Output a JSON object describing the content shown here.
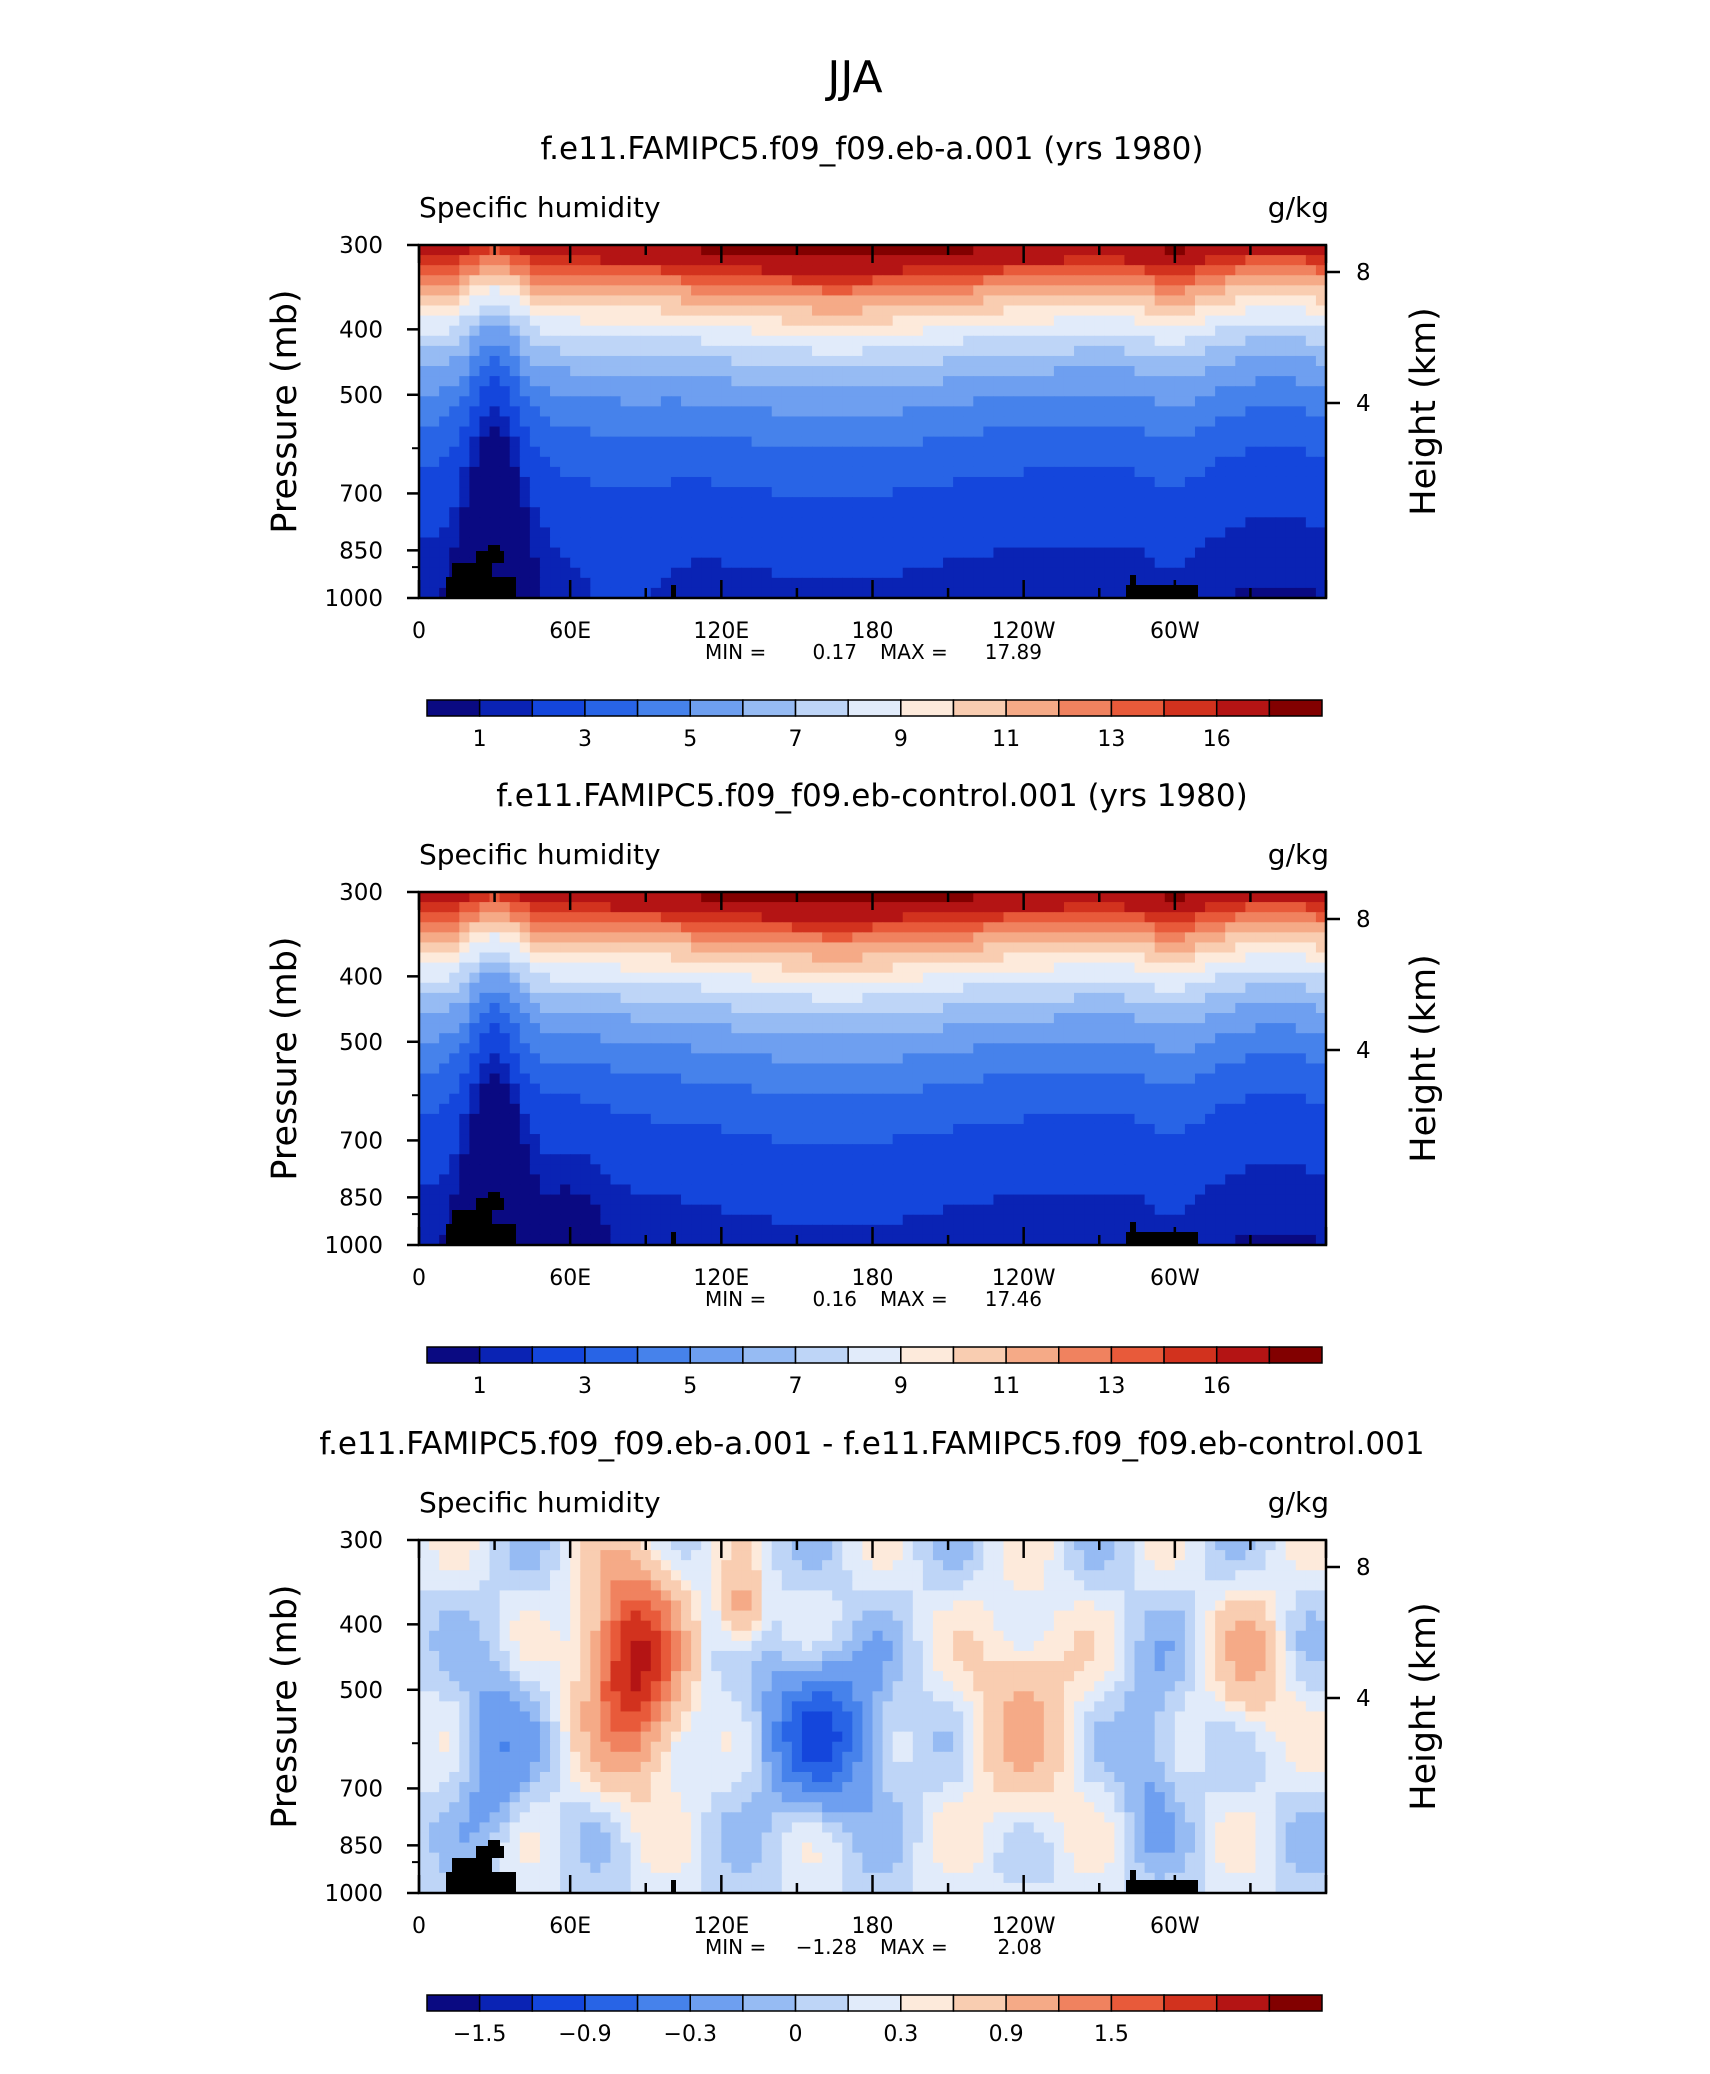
{
  "page": {
    "title": "JJA"
  },
  "colorbars": {
    "absolute": {
      "colors": [
        "#0a0a82",
        "#0a23b4",
        "#1446dc",
        "#2864e6",
        "#4682eb",
        "#6e9ff0",
        "#96bbf3",
        "#bed5f7",
        "#e1ebfa",
        "#fdeadb",
        "#f9cdb1",
        "#f5aa87",
        "#f0825f",
        "#e85a3a",
        "#d2321e",
        "#b41414",
        "#820000"
      ],
      "labels": [
        "1",
        "3",
        "5",
        "7",
        "9",
        "11",
        "13",
        "16"
      ]
    },
    "difference": {
      "colors": [
        "#0a0a82",
        "#0a23b4",
        "#1446dc",
        "#2864e6",
        "#4682eb",
        "#6e9ff0",
        "#96bbf3",
        "#bed5f7",
        "#e1ebfa",
        "#fdeadb",
        "#f9cdb1",
        "#f5aa87",
        "#f0825f",
        "#e85a3a",
        "#d2321e",
        "#b41414",
        "#820000"
      ],
      "labels": [
        "−1.5",
        "−0.9",
        "−0.3",
        "0",
        "0.3",
        "0.9",
        "1.5"
      ]
    }
  },
  "chart_data": [
    {
      "type": "heatmap",
      "title": "f.e11.FAMIPC5.f09_f09.eb-a.001 (yrs 1980)",
      "left_label": "Specific humidity",
      "right_label": "g/kg",
      "ylabel": "Pressure (mb)",
      "ylabel_right": "Height (km)",
      "x_ticks": [
        "0",
        "60E",
        "120E",
        "180",
        "120W",
        "60W"
      ],
      "y_ticks": [
        "300",
        "400",
        "500",
        "700",
        "850",
        "1000"
      ],
      "y_right_ticks": [
        "8",
        "4"
      ],
      "xlim": [
        0,
        360
      ],
      "ylim": [
        1000,
        300
      ],
      "y_log": true,
      "min_label": "MIN =",
      "min_value": "0.17",
      "max_label": "MAX =",
      "max_value": "17.89",
      "variant": "a"
    },
    {
      "type": "heatmap",
      "title": "f.e11.FAMIPC5.f09_f09.eb-control.001 (yrs 1980)",
      "left_label": "Specific humidity",
      "right_label": "g/kg",
      "ylabel": "Pressure (mb)",
      "ylabel_right": "Height (km)",
      "x_ticks": [
        "0",
        "60E",
        "120E",
        "180",
        "120W",
        "60W"
      ],
      "y_ticks": [
        "300",
        "400",
        "500",
        "700",
        "850",
        "1000"
      ],
      "y_right_ticks": [
        "8",
        "4"
      ],
      "xlim": [
        0,
        360
      ],
      "ylim": [
        1000,
        300
      ],
      "y_log": true,
      "min_label": "MIN =",
      "min_value": "0.16",
      "max_label": "MAX =",
      "max_value": "17.46",
      "variant": "control"
    },
    {
      "type": "heatmap",
      "title": "f.e11.FAMIPC5.f09_f09.eb-a.001 - f.e11.FAMIPC5.f09_f09.eb-control.001",
      "left_label": "Specific humidity",
      "right_label": "g/kg",
      "ylabel": "Pressure (mb)",
      "ylabel_right": "Height (km)",
      "x_ticks": [
        "0",
        "60E",
        "120E",
        "180",
        "120W",
        "60W"
      ],
      "y_ticks": [
        "300",
        "400",
        "500",
        "700",
        "850",
        "1000"
      ],
      "y_right_ticks": [
        "8",
        "4"
      ],
      "xlim": [
        0,
        360
      ],
      "ylim": [
        1000,
        300
      ],
      "y_log": true,
      "min_label": "MIN =",
      "min_value": "−1.28",
      "max_label": "MAX =",
      "max_value": "2.08",
      "variant": "diff"
    }
  ]
}
